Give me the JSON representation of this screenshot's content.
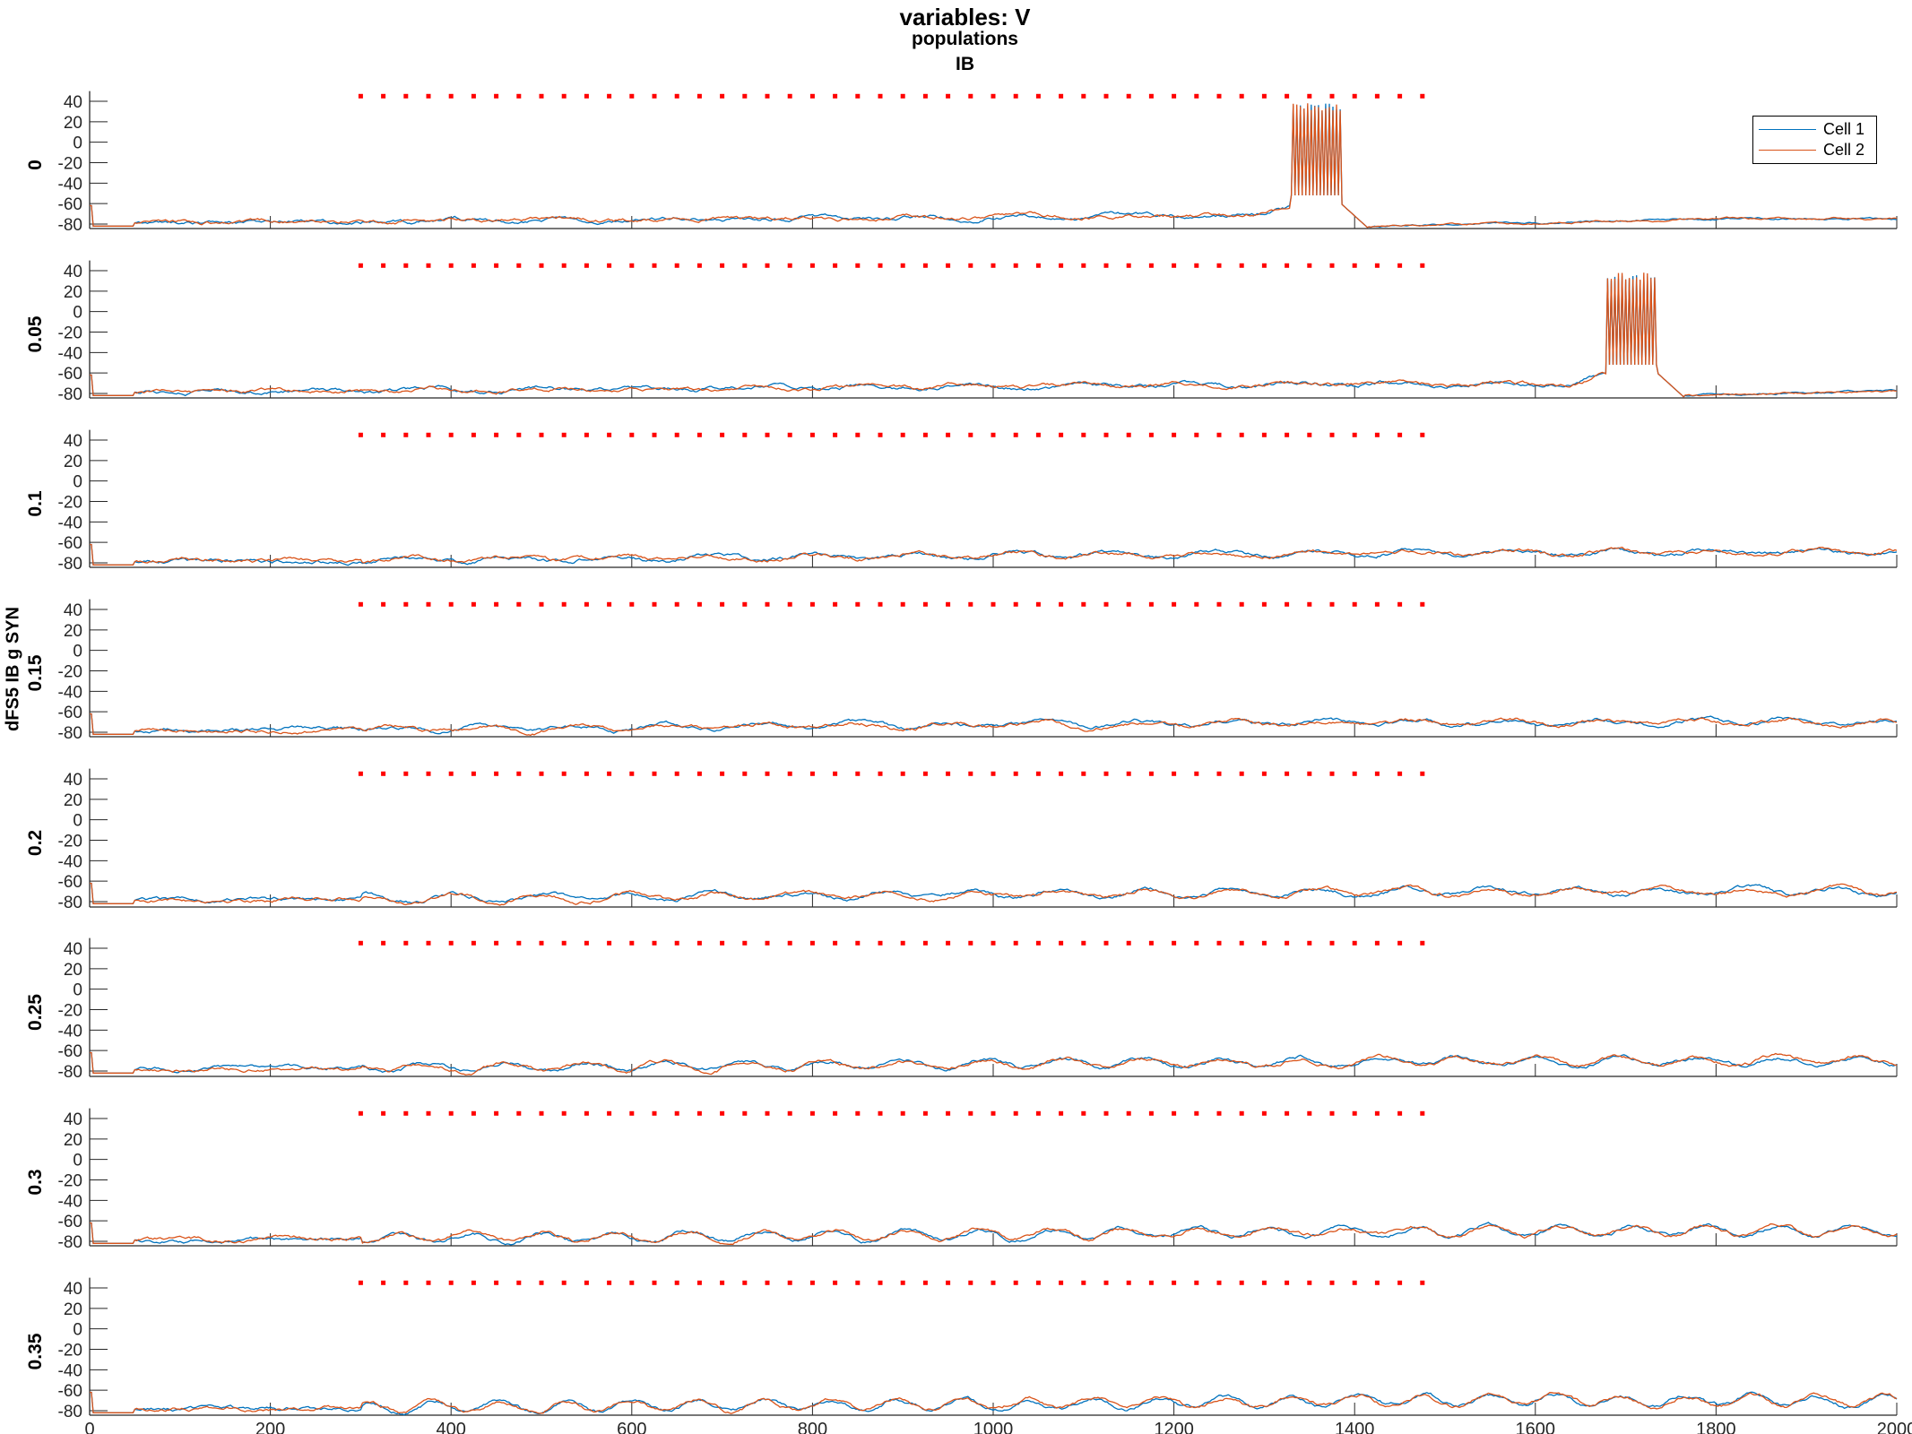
{
  "chart_data": {
    "type": "line",
    "title": "variables: V",
    "subtitle": "populations",
    "population": "IB",
    "ylabel": "dFS5 IB g SYN",
    "xlim": [
      0,
      2000
    ],
    "ylim": [
      -85,
      50
    ],
    "xticks": [
      0,
      200,
      400,
      600,
      800,
      1000,
      1200,
      1400,
      1600,
      1800,
      2000
    ],
    "yticks": [
      -80,
      -60,
      -40,
      -20,
      0,
      20,
      40
    ],
    "legend": {
      "position": "top-right",
      "entries": [
        "Cell 1",
        "Cell 2"
      ]
    },
    "series_colors": {
      "Cell 1": "#0072BD",
      "Cell 2": "#D95319"
    },
    "marker_color": "#FF0000",
    "stimulus_markers": {
      "y": 45,
      "x_start": 300,
      "x_end": 1480,
      "spacing": 25
    },
    "panels": [
      {
        "label": "0",
        "burst": {
          "start": 1330,
          "end": 1385
        }
      },
      {
        "label": "0.05",
        "burst": {
          "start": 1680,
          "end": 1735
        }
      },
      {
        "label": "0.1",
        "burst": null
      },
      {
        "label": "0.15",
        "burst": null
      },
      {
        "label": "0.2",
        "burst": null
      },
      {
        "label": "0.25",
        "burst": null
      },
      {
        "label": "0.3",
        "burst": null
      },
      {
        "label": "0.35",
        "burst": null
      }
    ]
  }
}
